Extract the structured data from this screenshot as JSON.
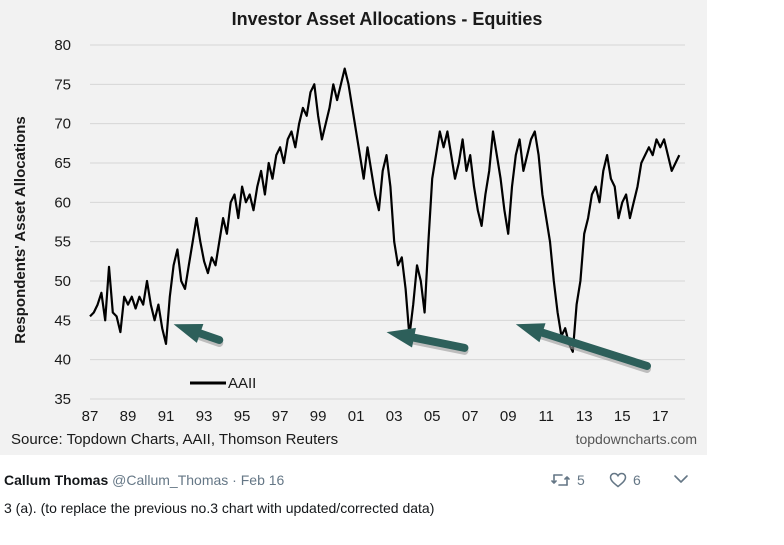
{
  "chart_data": {
    "type": "line",
    "title": "Investor Asset Allocations - Equities",
    "ylabel": "Respondents' Asset Allocations",
    "xlabel": "",
    "ylim": [
      35,
      80
    ],
    "xlim": [
      1987,
      2018.3
    ],
    "yticks": [
      35,
      40,
      45,
      50,
      55,
      60,
      65,
      70,
      75,
      80
    ],
    "xticks": [
      {
        "x": 1987,
        "label": "87"
      },
      {
        "x": 1989,
        "label": "89"
      },
      {
        "x": 1991,
        "label": "91"
      },
      {
        "x": 1993,
        "label": "93"
      },
      {
        "x": 1995,
        "label": "95"
      },
      {
        "x": 1997,
        "label": "97"
      },
      {
        "x": 1999,
        "label": "99"
      },
      {
        "x": 2001,
        "label": "01"
      },
      {
        "x": 2003,
        "label": "03"
      },
      {
        "x": 2005,
        "label": "05"
      },
      {
        "x": 2007,
        "label": "07"
      },
      {
        "x": 2009,
        "label": "09"
      },
      {
        "x": 2011,
        "label": "11"
      },
      {
        "x": 2013,
        "label": "13"
      },
      {
        "x": 2015,
        "label": "15"
      },
      {
        "x": 2017,
        "label": "17"
      }
    ],
    "grid": "horizontal",
    "legend_position": "bottom-left",
    "series": [
      {
        "name": "AAII",
        "color": "#000000",
        "points": [
          [
            1987.0,
            45.5
          ],
          [
            1987.2,
            46
          ],
          [
            1987.4,
            47
          ],
          [
            1987.6,
            48.5
          ],
          [
            1987.8,
            45
          ],
          [
            1988.0,
            51.8
          ],
          [
            1988.2,
            46
          ],
          [
            1988.4,
            45.5
          ],
          [
            1988.6,
            43.5
          ],
          [
            1988.8,
            48
          ],
          [
            1989.0,
            47
          ],
          [
            1989.2,
            48
          ],
          [
            1989.4,
            46.5
          ],
          [
            1989.6,
            48
          ],
          [
            1989.8,
            47
          ],
          [
            1990.0,
            50
          ],
          [
            1990.2,
            47
          ],
          [
            1990.4,
            45
          ],
          [
            1990.6,
            47
          ],
          [
            1990.8,
            44
          ],
          [
            1991.0,
            42
          ],
          [
            1991.2,
            48
          ],
          [
            1991.4,
            52
          ],
          [
            1991.6,
            54
          ],
          [
            1991.8,
            50
          ],
          [
            1992.0,
            49
          ],
          [
            1992.2,
            52
          ],
          [
            1992.4,
            55
          ],
          [
            1992.6,
            58
          ],
          [
            1992.8,
            55
          ],
          [
            1993.0,
            52.5
          ],
          [
            1993.2,
            51
          ],
          [
            1993.4,
            53
          ],
          [
            1993.6,
            52
          ],
          [
            1993.8,
            55
          ],
          [
            1994.0,
            58
          ],
          [
            1994.2,
            56
          ],
          [
            1994.4,
            60
          ],
          [
            1994.6,
            61
          ],
          [
            1994.8,
            58
          ],
          [
            1995.0,
            62
          ],
          [
            1995.2,
            60
          ],
          [
            1995.4,
            61
          ],
          [
            1995.6,
            59
          ],
          [
            1995.8,
            62
          ],
          [
            1996.0,
            64
          ],
          [
            1996.2,
            61
          ],
          [
            1996.4,
            65
          ],
          [
            1996.6,
            63
          ],
          [
            1996.8,
            66
          ],
          [
            1997.0,
            67
          ],
          [
            1997.2,
            65
          ],
          [
            1997.4,
            68
          ],
          [
            1997.6,
            69
          ],
          [
            1997.8,
            67
          ],
          [
            1998.0,
            70
          ],
          [
            1998.2,
            72
          ],
          [
            1998.4,
            71
          ],
          [
            1998.6,
            74
          ],
          [
            1998.8,
            75
          ],
          [
            1999.0,
            71
          ],
          [
            1999.2,
            68
          ],
          [
            1999.4,
            70
          ],
          [
            1999.6,
            72
          ],
          [
            1999.8,
            75
          ],
          [
            2000.0,
            73
          ],
          [
            2000.2,
            75
          ],
          [
            2000.4,
            77
          ],
          [
            2000.6,
            75
          ],
          [
            2000.8,
            72
          ],
          [
            2001.0,
            69
          ],
          [
            2001.2,
            66
          ],
          [
            2001.4,
            63
          ],
          [
            2001.6,
            67
          ],
          [
            2001.8,
            64
          ],
          [
            2002.0,
            61
          ],
          [
            2002.2,
            59
          ],
          [
            2002.4,
            64
          ],
          [
            2002.6,
            66
          ],
          [
            2002.8,
            62
          ],
          [
            2003.0,
            55
          ],
          [
            2003.2,
            52
          ],
          [
            2003.4,
            53
          ],
          [
            2003.6,
            49
          ],
          [
            2003.8,
            43
          ],
          [
            2004.0,
            47
          ],
          [
            2004.2,
            52
          ],
          [
            2004.4,
            50
          ],
          [
            2004.6,
            46
          ],
          [
            2004.8,
            55
          ],
          [
            2005.0,
            63
          ],
          [
            2005.2,
            66
          ],
          [
            2005.4,
            69
          ],
          [
            2005.6,
            67
          ],
          [
            2005.8,
            69
          ],
          [
            2006.0,
            66
          ],
          [
            2006.2,
            63
          ],
          [
            2006.4,
            65
          ],
          [
            2006.6,
            68
          ],
          [
            2006.8,
            64
          ],
          [
            2007.0,
            66
          ],
          [
            2007.2,
            62
          ],
          [
            2007.4,
            59
          ],
          [
            2007.6,
            57
          ],
          [
            2007.8,
            61
          ],
          [
            2008.0,
            64
          ],
          [
            2008.2,
            69
          ],
          [
            2008.4,
            66
          ],
          [
            2008.6,
            63
          ],
          [
            2008.8,
            59
          ],
          [
            2009.0,
            56
          ],
          [
            2009.2,
            62
          ],
          [
            2009.4,
            66
          ],
          [
            2009.6,
            68
          ],
          [
            2009.8,
            64
          ],
          [
            2010.0,
            66
          ],
          [
            2010.2,
            68
          ],
          [
            2010.4,
            69
          ],
          [
            2010.6,
            66
          ],
          [
            2010.8,
            61
          ],
          [
            2011.0,
            58
          ],
          [
            2011.2,
            55
          ],
          [
            2011.4,
            50
          ],
          [
            2011.6,
            46
          ],
          [
            2011.8,
            43
          ],
          [
            2012.0,
            44
          ],
          [
            2012.2,
            42
          ],
          [
            2012.4,
            41
          ],
          [
            2012.6,
            47
          ],
          [
            2012.8,
            50
          ],
          [
            2013.0,
            56
          ],
          [
            2013.2,
            58
          ],
          [
            2013.4,
            61
          ],
          [
            2013.6,
            62
          ],
          [
            2013.8,
            60
          ],
          [
            2014.0,
            64
          ],
          [
            2014.2,
            66
          ],
          [
            2014.4,
            63
          ],
          [
            2014.6,
            62
          ],
          [
            2014.8,
            58
          ],
          [
            2015.0,
            60
          ],
          [
            2015.2,
            61
          ],
          [
            2015.4,
            58
          ],
          [
            2015.6,
            60
          ],
          [
            2015.8,
            62
          ],
          [
            2016.0,
            65
          ],
          [
            2016.2,
            66
          ],
          [
            2016.4,
            67
          ],
          [
            2016.6,
            66
          ],
          [
            2016.8,
            68
          ],
          [
            2017.0,
            67
          ],
          [
            2017.2,
            68
          ],
          [
            2017.4,
            66
          ],
          [
            2017.6,
            64
          ],
          [
            2017.8,
            65
          ],
          [
            2018.0,
            66
          ]
        ]
      }
    ],
    "annotations": [
      {
        "type": "arrow",
        "from": [
          1993.8,
          42.5
        ],
        "to": [
          1991.4,
          44.5
        ],
        "color": "#2d5f5a"
      },
      {
        "type": "arrow",
        "from": [
          2006.7,
          41.5
        ],
        "to": [
          2002.6,
          43.5
        ],
        "color": "#2d5f5a"
      },
      {
        "type": "arrow",
        "from": [
          2016.3,
          39.2
        ],
        "to": [
          2009.4,
          44.5
        ],
        "color": "#2d5f5a"
      }
    ],
    "source": "Source: Topdown Charts, AAII, Thomson Reuters",
    "brand": "topdowncharts.com"
  },
  "tweet": {
    "author": "Callum Thomas",
    "handle": "@Callum_Thomas",
    "separator": "·",
    "date": "Feb 16",
    "text": "3 (a).  (to replace the previous no.3 chart with updated/corrected data)",
    "retweets": "5",
    "likes": "6",
    "icons": {
      "retweet": "retweet-icon",
      "like": "heart-icon",
      "more": "chevron-down-icon"
    }
  }
}
